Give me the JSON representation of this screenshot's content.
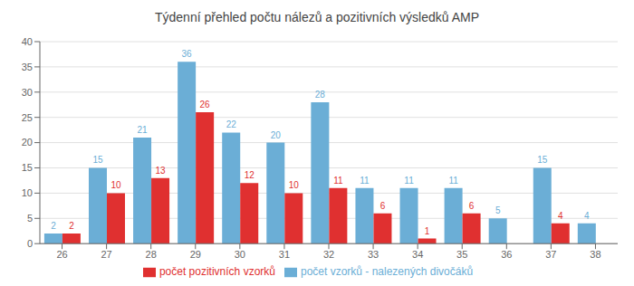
{
  "chart_data": {
    "type": "bar",
    "title": "Týdenní přehled počtu nálezů a pozitivních výsledků AMP",
    "categories": [
      26,
      27,
      28,
      29,
      30,
      31,
      32,
      33,
      34,
      35,
      36,
      37,
      38
    ],
    "series": [
      {
        "name": "počet vzorků - nalezených divočáků",
        "color": "#6baed6",
        "values": [
          2,
          15,
          21,
          36,
          22,
          20,
          28,
          11,
          11,
          11,
          5,
          15,
          4
        ]
      },
      {
        "name": "počet pozitivních vzorků",
        "color": "#e03030",
        "values": [
          2,
          10,
          13,
          26,
          12,
          10,
          11,
          6,
          1,
          6,
          0,
          4,
          0
        ]
      }
    ],
    "ylim": [
      0,
      40
    ],
    "yticks": [
      0,
      5,
      10,
      15,
      20,
      25,
      30,
      35,
      40
    ],
    "grid": true,
    "legend": "bottom",
    "data_labels": true
  }
}
